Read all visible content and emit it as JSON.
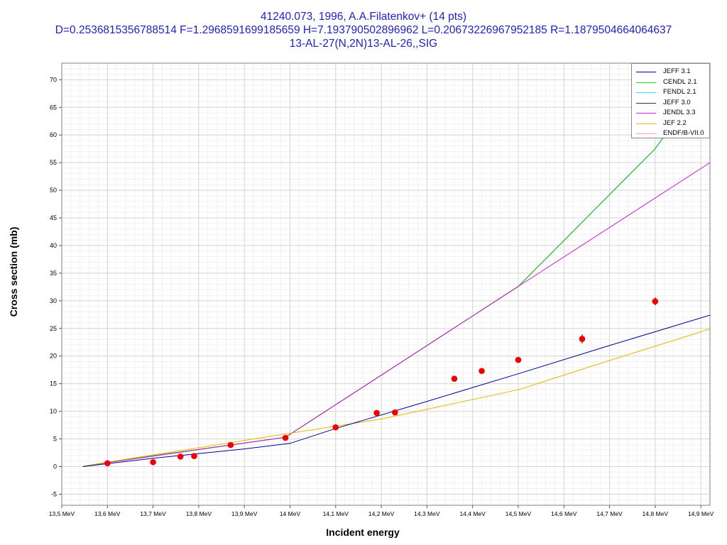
{
  "titles": {
    "line1": "41240.073, 1996, A.A.Filatenkov+ (14 pts)",
    "line2": "D=0.2536815356788514 F=1.2968591699185659 H=7.193790502896962 L=0.20673226967952185 R=1.1879504664064637",
    "line3": "13-AL-27(N,2N)13-AL-26,,SIG"
  },
  "chart_data": {
    "type": "line",
    "title": "41240.073, 1996, A.A.Filatenkov+ (14 pts)",
    "xlabel": "Incident energy",
    "ylabel": "Cross section (mb)",
    "x_unit": "MeV",
    "xlim": [
      13.5,
      14.92
    ],
    "ylim": [
      -7,
      73
    ],
    "x_ticks": [
      13.5,
      13.6,
      13.7,
      13.8,
      13.9,
      14.0,
      14.1,
      14.2,
      14.3,
      14.4,
      14.5,
      14.6,
      14.7,
      14.8,
      14.9
    ],
    "x_tick_labels": [
      "13,5 MeV",
      "13,6 MeV",
      "13,7 MeV",
      "13,8 MeV",
      "13,9 MeV",
      "14 MeV",
      "14,1 MeV",
      "14,2 MeV",
      "14,3 MeV",
      "14,4 MeV",
      "14,5 MeV",
      "14,6 MeV",
      "14,7 MeV",
      "14,8 MeV",
      "14,9 MeV"
    ],
    "y_ticks": [
      -5,
      0,
      5,
      10,
      15,
      20,
      25,
      30,
      35,
      40,
      45,
      50,
      55,
      60,
      65,
      70
    ],
    "y_tick_labels": [
      "-5",
      "0",
      "5",
      "10",
      "15",
      "20",
      "25",
      "30",
      "35",
      "40",
      "45",
      "50",
      "55",
      "60",
      "65",
      "70"
    ],
    "grid": true,
    "legend_position": "top-right",
    "series": [
      {
        "name": "JEFF 3.1",
        "color": "#00008b",
        "x": [
          13.546,
          13.7,
          13.9,
          14.0,
          14.1,
          14.3,
          14.5,
          14.7,
          14.92
        ],
        "y": [
          0,
          1.5,
          3.2,
          4.2,
          6.9,
          11.8,
          16.8,
          21.9,
          27.4
        ]
      },
      {
        "name": "CENDL 2.1",
        "color": "#22cc22",
        "x": [
          13.546,
          13.6,
          13.99,
          14.5,
          14.8,
          14.83
        ],
        "y": [
          0,
          0.8,
          5.3,
          32.6,
          57.5,
          61.0
        ]
      },
      {
        "name": "FENDL 2.1",
        "color": "#33dddd",
        "x": [
          13.546,
          13.6,
          13.99,
          14.5,
          14.8,
          14.83
        ],
        "y": [
          0,
          0.8,
          5.3,
          32.6,
          57.5,
          61.0
        ]
      },
      {
        "name": "JEFF 3.0",
        "color": "#333333",
        "x": [
          13.546,
          13.6,
          13.99,
          14.5,
          14.8,
          14.83
        ],
        "y": [
          0,
          0.8,
          5.3,
          32.6,
          57.5,
          61.0
        ]
      },
      {
        "name": "JENDL 3.3",
        "color": "#cc22cc",
        "x": [
          13.546,
          13.6,
          13.99,
          14.5,
          14.92
        ],
        "y": [
          0,
          0.7,
          5.3,
          32.6,
          55.0
        ]
      },
      {
        "name": "JEF 2.2",
        "color": "#e8b400",
        "x": [
          13.546,
          13.6,
          13.99,
          14.2,
          14.5,
          14.7,
          14.92
        ],
        "y": [
          0,
          0.8,
          5.9,
          8.6,
          13.9,
          19.2,
          24.9
        ]
      },
      {
        "name": "ENDF/B-VII.0",
        "color": "#ff99cc",
        "x": [
          13.546,
          13.6,
          13.99,
          14.5,
          14.8,
          14.83
        ],
        "y": [
          0,
          0.8,
          5.3,
          32.6,
          57.5,
          61.0
        ]
      }
    ],
    "experimental_points": {
      "color": "#ee0000",
      "x": [
        13.6,
        13.7,
        13.76,
        13.79,
        13.87,
        13.99,
        14.1,
        14.19,
        14.23,
        14.36,
        14.42,
        14.5,
        14.64,
        14.8
      ],
      "y": [
        0.6,
        0.8,
        1.8,
        1.9,
        3.9,
        5.2,
        7.1,
        9.7,
        9.8,
        15.9,
        17.3,
        19.3,
        23.1,
        29.9
      ],
      "err": [
        0.3,
        0.3,
        0.3,
        0.3,
        0.3,
        0.3,
        0.3,
        0.3,
        0.3,
        0.4,
        0.5,
        0.5,
        0.8,
        0.7
      ]
    }
  }
}
